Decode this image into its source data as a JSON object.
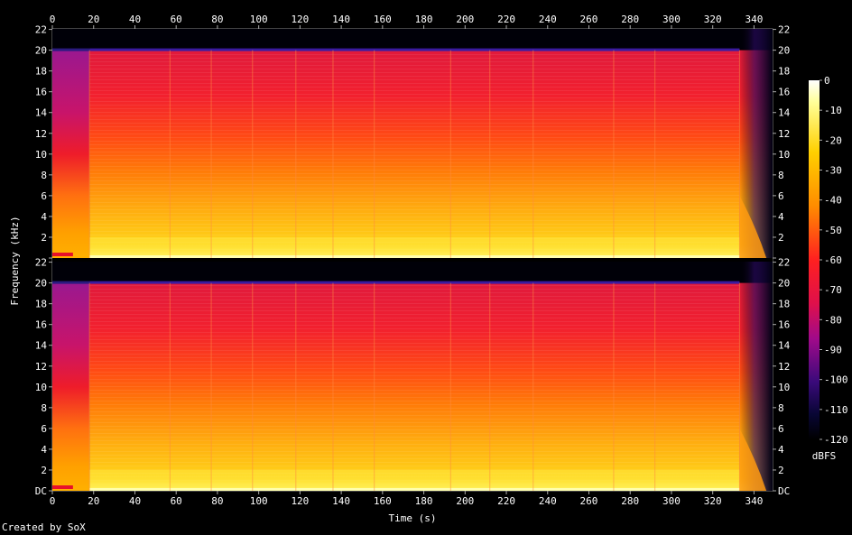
{
  "chart_data": {
    "type": "heatmap",
    "subtype": "spectrogram",
    "xlabel": "Time (s)",
    "ylabel": "Frequency (kHz)",
    "x_ticks": [
      0,
      20,
      40,
      60,
      80,
      100,
      120,
      140,
      160,
      180,
      200,
      220,
      240,
      260,
      280,
      300,
      320,
      340
    ],
    "xlim": [
      0,
      349
    ],
    "y_ticks": [
      "DC",
      "2",
      "4",
      "6",
      "8",
      "10",
      "12",
      "14",
      "16",
      "18",
      "20",
      "22"
    ],
    "y_tick_values": [
      0,
      2,
      4,
      6,
      8,
      10,
      12,
      14,
      16,
      18,
      20,
      22
    ],
    "ylim_khz": [
      0,
      22.05
    ],
    "channels": 2,
    "colorbar": {
      "label": "dBFS",
      "ticks": [
        0,
        -10,
        -20,
        -30,
        -40,
        -50,
        -60,
        -70,
        -80,
        -90,
        -100,
        -110,
        -120
      ],
      "range": [
        -120,
        0
      ]
    },
    "content_cutoff_khz": 20,
    "intro_end_s": 18,
    "fade_start_s": 333,
    "section_boundaries_s": [
      18,
      57,
      77,
      97,
      118,
      136,
      156,
      193,
      212,
      233,
      272,
      292,
      333
    ],
    "credit": "Created by SoX"
  }
}
